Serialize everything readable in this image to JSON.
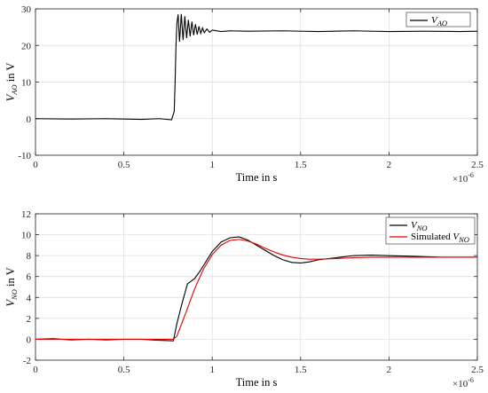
{
  "chart_data": [
    {
      "type": "line",
      "xlabel": "Time in s",
      "ylabel_base": "V",
      "ylabel_sub": "AO",
      "ylabel_suffix": " in V",
      "xlim": [
        0,
        2.5e-06
      ],
      "ylim": [
        -10,
        30
      ],
      "x_ticks": [
        0,
        0.5,
        1,
        1.5,
        2,
        2.5
      ],
      "y_ticks": [
        -10,
        0,
        10,
        20,
        30
      ],
      "x_multiplier": "×10",
      "x_multiplier_exp": "-6",
      "grid": true,
      "legend_position": "top-right",
      "series": [
        {
          "name_base": "V",
          "name_sub": "AO",
          "name_prefix": "",
          "color": "#000000",
          "points": [
            [
              0,
              0
            ],
            [
              2e-07,
              -0.1
            ],
            [
              4e-07,
              0
            ],
            [
              6e-07,
              -0.2
            ],
            [
              7e-07,
              0
            ],
            [
              7.7e-07,
              -0.3
            ],
            [
              7.85e-07,
              2
            ],
            [
              7.9e-07,
              10
            ],
            [
              7.95e-07,
              20
            ],
            [
              8e-07,
              26
            ],
            [
              8.07e-07,
              28.5
            ],
            [
              8.15e-07,
              21
            ],
            [
              8.25e-07,
              28.6
            ],
            [
              8.35e-07,
              21.5
            ],
            [
              8.45e-07,
              28
            ],
            [
              8.55e-07,
              22
            ],
            [
              8.65e-07,
              27
            ],
            [
              8.75e-07,
              22.5
            ],
            [
              8.85e-07,
              26.5
            ],
            [
              8.95e-07,
              22.8
            ],
            [
              9.05e-07,
              25.8
            ],
            [
              9.15e-07,
              23
            ],
            [
              9.25e-07,
              25.2
            ],
            [
              9.35e-07,
              23.3
            ],
            [
              9.45e-07,
              24.8
            ],
            [
              9.55e-07,
              23.5
            ],
            [
              9.7e-07,
              24.5
            ],
            [
              9.85e-07,
              23.6
            ],
            [
              1e-06,
              24.2
            ],
            [
              1.05e-06,
              23.8
            ],
            [
              1.1e-06,
              24
            ],
            [
              1.2e-06,
              23.9
            ],
            [
              1.4e-06,
              24
            ],
            [
              1.6e-06,
              23.8
            ],
            [
              1.8e-06,
              24
            ],
            [
              2e-06,
              23.8
            ],
            [
              2.2e-06,
              23.9
            ],
            [
              2.4e-06,
              23.8
            ],
            [
              2.5e-06,
              23.9
            ]
          ]
        }
      ]
    },
    {
      "type": "line",
      "xlabel": "Time in s",
      "ylabel_base": "V",
      "ylabel_sub": "NO",
      "ylabel_suffix": " in V",
      "xlim": [
        0,
        2.5e-06
      ],
      "ylim": [
        -2,
        12
      ],
      "x_ticks": [
        0,
        0.5,
        1,
        1.5,
        2,
        2.5
      ],
      "y_ticks": [
        -2,
        0,
        2,
        4,
        6,
        8,
        10,
        12
      ],
      "x_multiplier": "×10",
      "x_multiplier_exp": "-6",
      "grid": true,
      "legend_position": "top-right",
      "series": [
        {
          "name_base": "V",
          "name_sub": "NO",
          "name_prefix": "",
          "color": "#000000",
          "points": [
            [
              0,
              0
            ],
            [
              1e-07,
              0.05
            ],
            [
              2e-07,
              -0.05
            ],
            [
              3e-07,
              0
            ],
            [
              4e-07,
              -0.05
            ],
            [
              5e-07,
              0
            ],
            [
              6e-07,
              0
            ],
            [
              7e-07,
              -0.1
            ],
            [
              7.8e-07,
              -0.15
            ],
            [
              8e-07,
              1.5
            ],
            [
              8.3e-07,
              3.5
            ],
            [
              8.6e-07,
              5.3
            ],
            [
              9e-07,
              5.8
            ],
            [
              9.3e-07,
              6.5
            ],
            [
              9.6e-07,
              7.3
            ],
            [
              1e-06,
              8.4
            ],
            [
              1.05e-06,
              9.3
            ],
            [
              1.1e-06,
              9.7
            ],
            [
              1.15e-06,
              9.8
            ],
            [
              1.2e-06,
              9.5
            ],
            [
              1.25e-06,
              9.0
            ],
            [
              1.3e-06,
              8.5
            ],
            [
              1.35e-06,
              8.0
            ],
            [
              1.4e-06,
              7.6
            ],
            [
              1.45e-06,
              7.35
            ],
            [
              1.5e-06,
              7.3
            ],
            [
              1.55e-06,
              7.4
            ],
            [
              1.6e-06,
              7.6
            ],
            [
              1.7e-06,
              7.8
            ],
            [
              1.8e-06,
              8.0
            ],
            [
              1.9e-06,
              8.05
            ],
            [
              2e-06,
              8.0
            ],
            [
              2.1e-06,
              7.95
            ],
            [
              2.2e-06,
              7.9
            ],
            [
              2.3e-06,
              7.85
            ],
            [
              2.4e-06,
              7.85
            ],
            [
              2.5e-06,
              7.85
            ]
          ]
        },
        {
          "name_base": "V",
          "name_sub": "NO",
          "name_prefix": "Simulated ",
          "color": "#e00000",
          "points": [
            [
              0,
              0
            ],
            [
              2e-07,
              0
            ],
            [
              4e-07,
              0
            ],
            [
              6e-07,
              0
            ],
            [
              7.8e-07,
              0
            ],
            [
              8e-07,
              0.3
            ],
            [
              8.5e-07,
              2.5
            ],
            [
              9e-07,
              4.8
            ],
            [
              9.5e-07,
              6.7
            ],
            [
              1e-06,
              8.1
            ],
            [
              1.05e-06,
              9.0
            ],
            [
              1.1e-06,
              9.45
            ],
            [
              1.15e-06,
              9.55
            ],
            [
              1.2e-06,
              9.4
            ],
            [
              1.25e-06,
              9.1
            ],
            [
              1.3e-06,
              8.7
            ],
            [
              1.35e-06,
              8.35
            ],
            [
              1.4e-06,
              8.05
            ],
            [
              1.45e-06,
              7.85
            ],
            [
              1.5e-06,
              7.72
            ],
            [
              1.55e-06,
              7.66
            ],
            [
              1.6e-06,
              7.66
            ],
            [
              1.7e-06,
              7.72
            ],
            [
              1.8e-06,
              7.8
            ],
            [
              1.9e-06,
              7.85
            ],
            [
              2e-06,
              7.85
            ],
            [
              2.2e-06,
              7.85
            ],
            [
              2.4e-06,
              7.85
            ],
            [
              2.5e-06,
              7.85
            ]
          ]
        }
      ]
    }
  ]
}
